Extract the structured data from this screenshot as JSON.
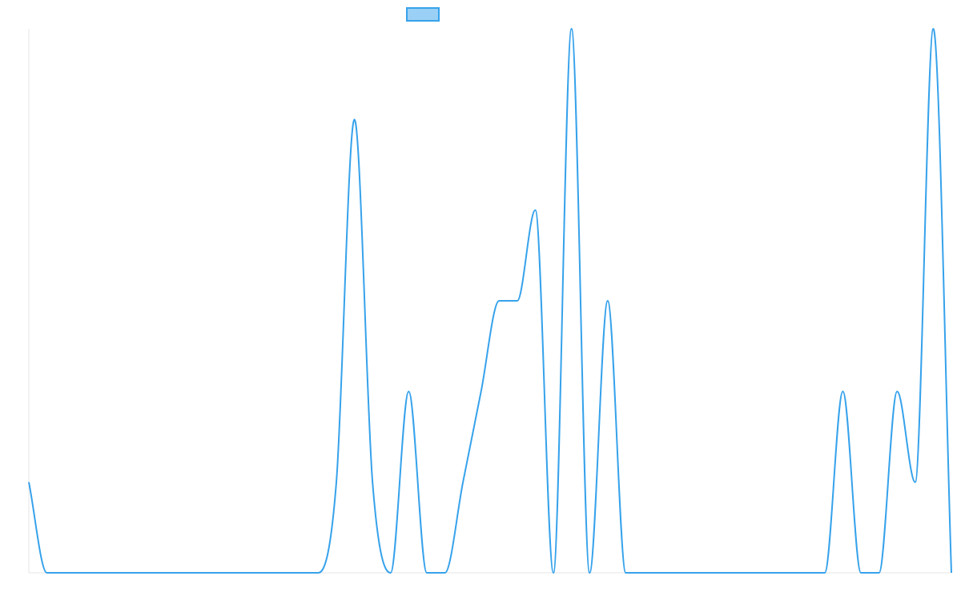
{
  "chart_data": {
    "type": "line",
    "title": "",
    "xlabel": "",
    "ylabel": "",
    "legend": {
      "position": "top-center",
      "entries": [
        {
          "label": ""
        }
      ]
    },
    "grid": false,
    "x": [
      0,
      1,
      2,
      3,
      4,
      5,
      6,
      7,
      8,
      9,
      10,
      11,
      12,
      13,
      14,
      15,
      16,
      17,
      18,
      19,
      20,
      21,
      22,
      23,
      24,
      25,
      26,
      27,
      28,
      29,
      30,
      31,
      32,
      33,
      34,
      35,
      36,
      37,
      38,
      39,
      40,
      41,
      42,
      43,
      44,
      45,
      46,
      47,
      48,
      49,
      50,
      51
    ],
    "xlim": [
      0,
      51
    ],
    "ylim": [
      0,
      6
    ],
    "series": [
      {
        "values": [
          1,
          0,
          0,
          0,
          0,
          0,
          0,
          0,
          0,
          0,
          0,
          0,
          0,
          0,
          0,
          0,
          0,
          1,
          5,
          1,
          0,
          2,
          0,
          0,
          1,
          2,
          3,
          3,
          4,
          0,
          6,
          0,
          3,
          0,
          0,
          0,
          0,
          0,
          0,
          0,
          0,
          0,
          0,
          0,
          0,
          2,
          0,
          0,
          2,
          1,
          6,
          0
        ],
        "color": "#36A2EB",
        "fill": "#9AD0F5"
      }
    ]
  }
}
